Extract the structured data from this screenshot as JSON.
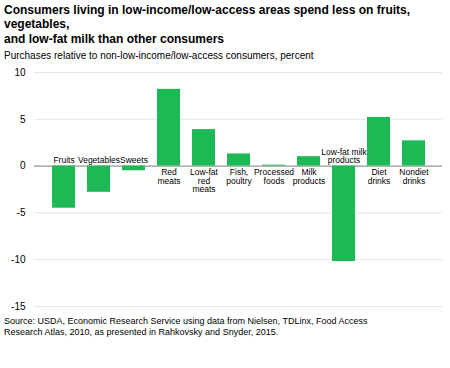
{
  "chart_data": {
    "type": "bar",
    "title": "Consumers living in low-income/low-access areas spend less on fruits, vegetables,\nand low-fat milk than other consumers",
    "ylabel": "Purchases relative to non-low-income/low-access consumers, percent",
    "categories": [
      "Fruits",
      "Vegetables",
      "Sweets",
      "Red\nmeats",
      "Low-fat\nred\nmeats",
      "Fish,\npoultry",
      "Processed\nfoods",
      "Milk\nproducts",
      "Low-fat milk\nproducts",
      "Diet\ndrinks",
      "Nondiet\ndrinks"
    ],
    "values": [
      -4.5,
      -2.8,
      -0.5,
      8.2,
      3.9,
      1.3,
      0.1,
      1.0,
      -10.2,
      5.2,
      2.7
    ],
    "color": "#1db954",
    "ylim": [
      -15,
      10
    ],
    "yticks": [
      -15,
      -10,
      -5,
      0,
      5,
      10
    ],
    "grid": true,
    "caption": "Source: USDA, Economic Research Service using data from Nielsen, TDLinx, Food Access\nResearch Atlas, 2010, as presented in Rahkovsky and Snyder, 2015."
  }
}
